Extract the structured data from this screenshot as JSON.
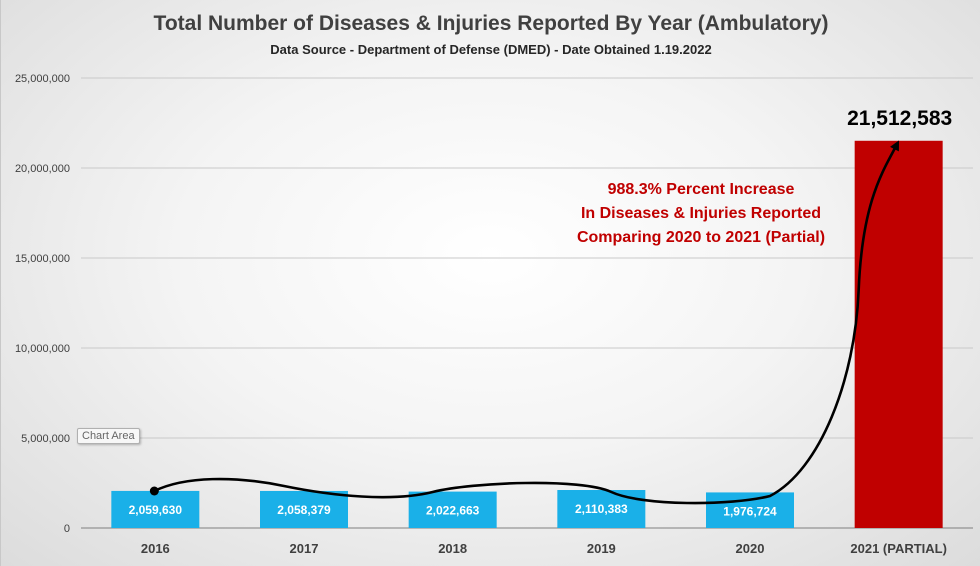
{
  "chart_data": {
    "type": "bar",
    "title": "Total Number of Diseases & Injuries Reported By Year (Ambulatory)",
    "subtitle": "Data Source - Department of Defense (DMED) - Date Obtained 1.19.2022",
    "categories": [
      "2016",
      "2017",
      "2018",
      "2019",
      "2020",
      "2021 (PARTIAL)"
    ],
    "values": [
      2059630,
      2058379,
      2022663,
      2110383,
      1976724,
      21512583
    ],
    "value_labels": [
      "2,059,630",
      "2,058,379",
      "2,022,663",
      "2,110,383",
      "1,976,724",
      "21,512,583"
    ],
    "bar_colors": [
      "#1ab0e8",
      "#1ab0e8",
      "#1ab0e8",
      "#1ab0e8",
      "#1ab0e8",
      "#c00000"
    ],
    "ylim": [
      0,
      25000000
    ],
    "yticks": [
      0,
      5000000,
      10000000,
      15000000,
      20000000,
      25000000
    ],
    "ytick_labels": [
      "0",
      "5,000,000",
      "10,000,000",
      "15,000,000",
      "20,000,000",
      "25,000,000"
    ],
    "grid": true,
    "annotation_lines": [
      "988.3% Percent Increase",
      "In Diseases & Injuries Reported",
      "Comparing 2020 to 2021 (Partial)"
    ],
    "annotation_color": "#c00000"
  },
  "tooltip": "Chart Area"
}
